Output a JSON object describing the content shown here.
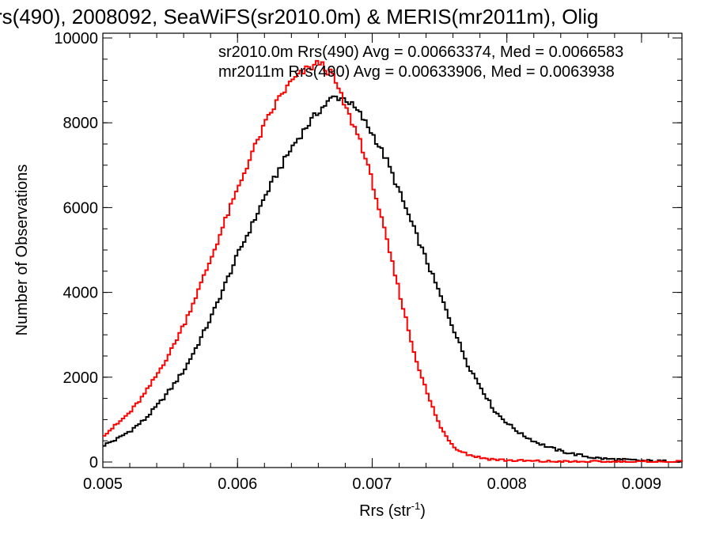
{
  "chart_data": {
    "type": "line",
    "title": "rs(490), 2008092, SeaWiFS(sr2010.0m) & MERIS(mr2011m), Olig",
    "xlabel": "Rrs (str",
    "xlabel_sup": "-1",
    "xlabel_end": ")",
    "ylabel": "Number of Observations",
    "xlim": [
      0.005,
      0.0093
    ],
    "ylim": [
      0,
      10000
    ],
    "x_ticks": [
      {
        "value": 0.005,
        "label": "0.005"
      },
      {
        "value": 0.006,
        "label": "0.006"
      },
      {
        "value": 0.007,
        "label": "0.007"
      },
      {
        "value": 0.008,
        "label": "0.008"
      },
      {
        "value": 0.009,
        "label": "0.009"
      }
    ],
    "y_ticks": [
      {
        "value": 0,
        "label": "0"
      },
      {
        "value": 2000,
        "label": "2000"
      },
      {
        "value": 4000,
        "label": "4000"
      },
      {
        "value": 6000,
        "label": "6000"
      },
      {
        "value": 8000,
        "label": "8000"
      },
      {
        "value": 10000,
        "label": "10000"
      }
    ],
    "annotations": [
      {
        "text": "sr2010.0m Rrs(490) Avg = 0.00663374, Med = 0.0066583",
        "color": "#000000"
      },
      {
        "text": "mr2011m Rrs(490) Avg = 0.00633906, Med = 0.0063938",
        "color": "#ff0000"
      }
    ],
    "series": [
      {
        "color": "#000000",
        "points": [
          [
            0.005,
            400
          ],
          [
            0.0051,
            550
          ],
          [
            0.0052,
            750
          ],
          [
            0.0053,
            1000
          ],
          [
            0.0054,
            1350
          ],
          [
            0.0055,
            1750
          ],
          [
            0.0056,
            2200
          ],
          [
            0.0057,
            2800
          ],
          [
            0.0058,
            3450
          ],
          [
            0.0059,
            4200
          ],
          [
            0.006,
            4950
          ],
          [
            0.0061,
            5600
          ],
          [
            0.0062,
            6300
          ],
          [
            0.0063,
            6900
          ],
          [
            0.0064,
            7450
          ],
          [
            0.0065,
            7900
          ],
          [
            0.0066,
            8300
          ],
          [
            0.0067,
            8600
          ],
          [
            0.00675,
            8600
          ],
          [
            0.0068,
            8550
          ],
          [
            0.0069,
            8200
          ],
          [
            0.007,
            7700
          ],
          [
            0.0071,
            7100
          ],
          [
            0.0072,
            6300
          ],
          [
            0.0073,
            5500
          ],
          [
            0.0074,
            4700
          ],
          [
            0.0075,
            3900
          ],
          [
            0.0076,
            3100
          ],
          [
            0.0077,
            2300
          ],
          [
            0.0078,
            1750
          ],
          [
            0.0079,
            1200
          ],
          [
            0.008,
            900
          ],
          [
            0.0081,
            650
          ],
          [
            0.0082,
            480
          ],
          [
            0.0083,
            350
          ],
          [
            0.0084,
            250
          ],
          [
            0.0085,
            180
          ],
          [
            0.0086,
            120
          ],
          [
            0.0087,
            80
          ],
          [
            0.0088,
            60
          ],
          [
            0.0089,
            45
          ],
          [
            0.009,
            30
          ],
          [
            0.0091,
            20
          ],
          [
            0.0092,
            15
          ],
          [
            0.0093,
            10
          ]
        ]
      },
      {
        "color": "#ff0000",
        "points": [
          [
            0.005,
            650
          ],
          [
            0.0051,
            900
          ],
          [
            0.0052,
            1200
          ],
          [
            0.0053,
            1600
          ],
          [
            0.0054,
            2100
          ],
          [
            0.0055,
            2650
          ],
          [
            0.0056,
            3300
          ],
          [
            0.0057,
            4050
          ],
          [
            0.0058,
            4850
          ],
          [
            0.0059,
            5700
          ],
          [
            0.006,
            6500
          ],
          [
            0.0061,
            7300
          ],
          [
            0.0062,
            8000
          ],
          [
            0.0063,
            8600
          ],
          [
            0.0064,
            9000
          ],
          [
            0.0065,
            9250
          ],
          [
            0.0066,
            9420
          ],
          [
            0.0067,
            9100
          ],
          [
            0.0068,
            8300
          ],
          [
            0.0069,
            7600
          ],
          [
            0.007,
            6500
          ],
          [
            0.0071,
            5200
          ],
          [
            0.0072,
            3900
          ],
          [
            0.0073,
            2600
          ],
          [
            0.0074,
            1600
          ],
          [
            0.0075,
            800
          ],
          [
            0.0076,
            350
          ],
          [
            0.0077,
            180
          ],
          [
            0.0078,
            100
          ],
          [
            0.0079,
            60
          ],
          [
            0.008,
            40
          ],
          [
            0.0081,
            28
          ],
          [
            0.0082,
            18
          ],
          [
            0.0083,
            12
          ],
          [
            0.0084,
            8
          ],
          [
            0.0085,
            5
          ],
          [
            0.0086,
            4
          ],
          [
            0.0087,
            3
          ],
          [
            0.0088,
            2
          ],
          [
            0.0089,
            2
          ],
          [
            0.009,
            1
          ],
          [
            0.0091,
            1
          ],
          [
            0.0092,
            1
          ],
          [
            0.0093,
            0
          ]
        ]
      }
    ]
  }
}
